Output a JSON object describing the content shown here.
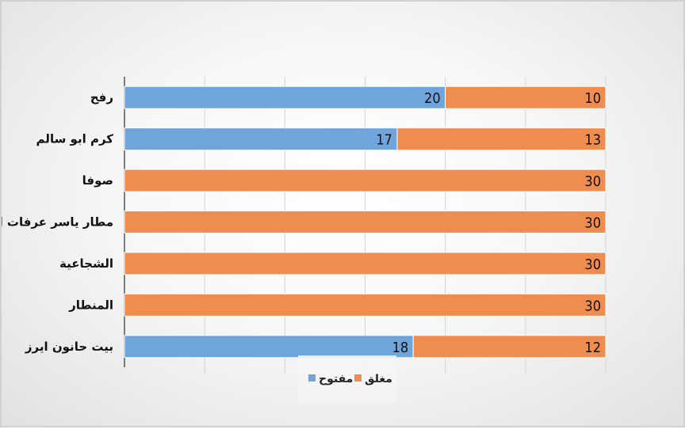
{
  "chart_data": {
    "type": "bar",
    "orientation": "horizontal",
    "stacked": true,
    "categories": [
      "رفح",
      "كرم ابو سالم",
      "صوفا",
      "مطار ياسر عرفات الدولي",
      "الشجاعية",
      "المنطار",
      "بيت حانون ايرز"
    ],
    "series": [
      {
        "name": "مفتوح",
        "color": "#6fa5db",
        "values": [
          20,
          17,
          0,
          0,
          0,
          0,
          18
        ]
      },
      {
        "name": "مغلق",
        "color": "#ef8c4f",
        "values": [
          10,
          13,
          30,
          30,
          30,
          30,
          12
        ]
      }
    ],
    "xlim": [
      0,
      30
    ],
    "grid": true,
    "legend": "bottom",
    "title": "",
    "xlabel": "",
    "ylabel": ""
  }
}
